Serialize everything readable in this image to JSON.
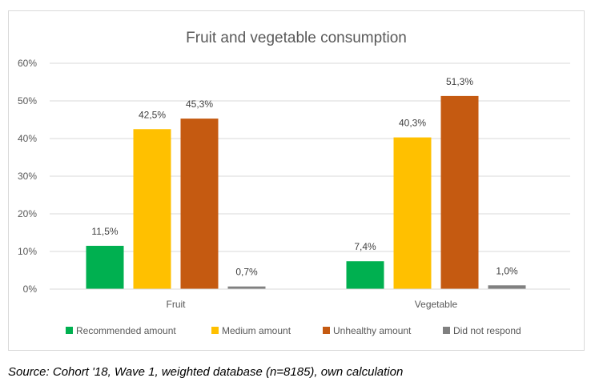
{
  "chart_data": {
    "type": "bar",
    "title": "Fruit and vegetable consumption",
    "categories": [
      "Fruit",
      "Vegetable"
    ],
    "series": [
      {
        "name": "Recommended amount",
        "values": [
          11.5,
          7.4
        ],
        "labels": [
          "11,5%",
          "7,4%"
        ],
        "color": "#00b050"
      },
      {
        "name": "Medium amount",
        "values": [
          42.5,
          40.3
        ],
        "labels": [
          "42,5%",
          "40,3%"
        ],
        "color": "#ffc000"
      },
      {
        "name": "Unhealthy amount",
        "values": [
          45.3,
          51.3
        ],
        "labels": [
          "45,3%",
          "51,3%"
        ],
        "color": "#c55a11"
      },
      {
        "name": "Did not respond",
        "values": [
          0.7,
          1.0
        ],
        "labels": [
          "0,7%",
          "1,0%"
        ],
        "color": "#808080"
      }
    ],
    "ylim": [
      0,
      60
    ],
    "yticks": [
      {
        "value": 0,
        "label": "0%"
      },
      {
        "value": 10,
        "label": "10%"
      },
      {
        "value": 20,
        "label": "20%"
      },
      {
        "value": 30,
        "label": "30%"
      },
      {
        "value": 40,
        "label": "40%"
      },
      {
        "value": 50,
        "label": "50%"
      },
      {
        "value": 60,
        "label": "60%"
      }
    ],
    "grid": true,
    "legend_position": "bottom"
  },
  "source": "Source: Cohort '18, Wave 1, weighted database (n=8185), own calculation"
}
